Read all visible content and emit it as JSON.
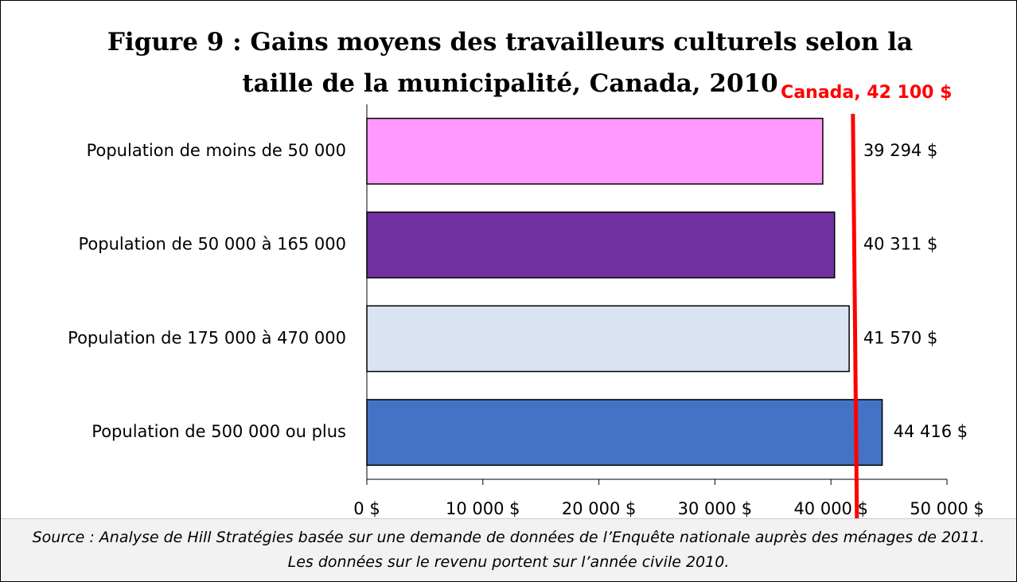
{
  "chart_data": {
    "type": "bar",
    "orientation": "horizontal",
    "title": "Figure 9 : Gains moyens des travailleurs culturels selon la taille de la municipalité, Canada, 2010",
    "categories": [
      "Population de moins de 50 000",
      "Population de 50 000 à 165 000",
      "Population de 175 000 à 470 000",
      "Population de 500 000 ou plus"
    ],
    "values": [
      39294,
      40311,
      41570,
      44416
    ],
    "value_labels": [
      "39 294 $",
      "40 311 $",
      "41 570 $",
      "44 416 $"
    ],
    "colors": [
      "#ff99ff",
      "#7030a0",
      "#dae3f3",
      "#4472c4"
    ],
    "xlim": [
      0,
      50000
    ],
    "xticks": [
      {
        "value": 0,
        "label": "0 $"
      },
      {
        "value": 10000,
        "label": "10 000 $"
      },
      {
        "value": 20000,
        "label": "20 000 $"
      },
      {
        "value": 30000,
        "label": "30 000 $"
      },
      {
        "value": 40000,
        "label": "40 000 $"
      },
      {
        "value": 50000,
        "label": "50 000 $"
      }
    ],
    "reference_line": {
      "label": "Canada, 42 100 $",
      "value": 42100,
      "color": "#ff0000"
    },
    "source": "Source : Analyse de Hill Stratégies basée sur une demande de données de l’Enquête nationale auprès des ménages de 2011. Les données sur le revenu portent sur l’année civile 2010."
  }
}
